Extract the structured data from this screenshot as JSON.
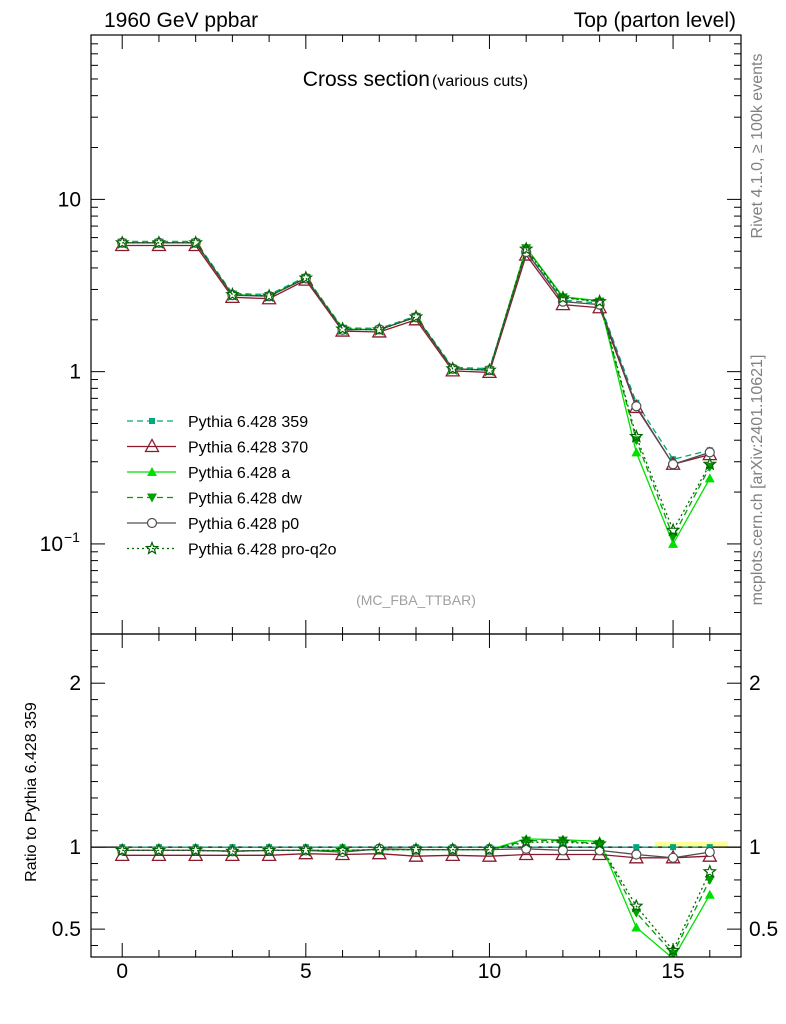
{
  "header": {
    "left": "1960 GeV ppbar",
    "right": "Top (parton level)"
  },
  "side_labels": {
    "rivet": "Rivet 4.1.0, ≥ 100k events",
    "mcplots": "mcplots.cern.ch [arXiv:2401.10621]"
  },
  "chart_data": [
    {
      "type": "line",
      "title": "Cross section",
      "subtitle": "(various cuts)",
      "watermark": "(MC_FBA_TTBAR)",
      "yscale": "log",
      "ylim": [
        0.03,
        90
      ],
      "xlim": [
        -0.85,
        16.85
      ],
      "yticks_major": [
        {
          "value": 10,
          "label": "10"
        },
        {
          "value": 1,
          "label": "1"
        },
        {
          "value": 0.1,
          "label": "10",
          "exponent": "−1"
        }
      ],
      "legend_position": "lower-left",
      "x": [
        0,
        1,
        2,
        3,
        4,
        5,
        6,
        7,
        8,
        9,
        10,
        11,
        12,
        13,
        14,
        15,
        16
      ],
      "series": [
        {
          "name": "Pythia 6.428 359",
          "color": "#00a87c",
          "dash": "6,4",
          "marker": "square",
          "values": [
            5.7,
            5.7,
            5.7,
            2.85,
            2.8,
            3.55,
            1.8,
            1.78,
            2.1,
            1.06,
            1.04,
            5.0,
            2.6,
            2.5,
            0.66,
            0.31,
            0.35
          ]
        },
        {
          "name": "Pythia 6.428 370",
          "color": "#8b1a2e",
          "dash": "",
          "marker": "triangle-open",
          "values": [
            5.4,
            5.4,
            5.4,
            2.7,
            2.65,
            3.4,
            1.72,
            1.7,
            2.0,
            1.01,
            0.99,
            4.75,
            2.45,
            2.35,
            0.62,
            0.29,
            0.33
          ]
        },
        {
          "name": "Pythia 6.428 a",
          "color": "#00e000",
          "dash": "",
          "marker": "triangle",
          "values": [
            5.6,
            5.6,
            5.6,
            2.8,
            2.75,
            3.5,
            1.77,
            1.75,
            2.08,
            1.04,
            1.02,
            5.25,
            2.72,
            2.58,
            0.34,
            0.1,
            0.24
          ]
        },
        {
          "name": "Pythia 6.428 dw",
          "color": "#00a000",
          "dash": "6,4",
          "marker": "triangle-down",
          "values": [
            5.6,
            5.6,
            5.6,
            2.8,
            2.75,
            3.5,
            1.77,
            1.75,
            2.08,
            1.04,
            1.02,
            5.2,
            2.7,
            2.55,
            0.4,
            0.11,
            0.28
          ]
        },
        {
          "name": "Pythia 6.428 p0",
          "color": "#505050",
          "dash": "",
          "marker": "circle-open",
          "values": [
            5.6,
            5.6,
            5.6,
            2.78,
            2.74,
            3.48,
            1.75,
            1.76,
            2.07,
            1.04,
            1.02,
            4.95,
            2.55,
            2.45,
            0.63,
            0.29,
            0.34
          ]
        },
        {
          "name": "Pythia 6.428 pro-q2o",
          "color": "#006400",
          "dash": "2,3",
          "marker": "star",
          "values": [
            5.6,
            5.6,
            5.6,
            2.8,
            2.75,
            3.5,
            1.77,
            1.75,
            2.08,
            1.04,
            1.02,
            5.15,
            2.68,
            2.55,
            0.42,
            0.12,
            0.29
          ]
        }
      ]
    },
    {
      "type": "line",
      "ylabel": "Ratio to Pythia 6.428 359",
      "yscale": "linear",
      "ylim": [
        0.33,
        2.3
      ],
      "xlim": [
        -0.85,
        16.85
      ],
      "yticks_major": [
        {
          "value": 0.5,
          "label": "0.5"
        },
        {
          "value": 1,
          "label": "1"
        },
        {
          "value": 2,
          "label": "2"
        }
      ],
      "xticks": [
        {
          "value": 0,
          "label": "0"
        },
        {
          "value": 5,
          "label": "5"
        },
        {
          "value": 10,
          "label": "10"
        },
        {
          "value": 15,
          "label": "15"
        }
      ],
      "band": {
        "color": "#ffff99",
        "x_range": [
          14.5,
          16.5
        ],
        "y_range": [
          0.995,
          1.015
        ]
      },
      "x": [
        0,
        1,
        2,
        3,
        4,
        5,
        6,
        7,
        8,
        9,
        10,
        11,
        12,
        13,
        14,
        15,
        16
      ],
      "series": [
        {
          "name": "Pythia 6.428 359",
          "color": "#00a87c",
          "dash": "6,4",
          "marker": "square",
          "values": [
            1,
            1,
            1,
            1,
            1,
            1,
            1,
            1,
            1,
            1,
            1,
            1,
            1,
            1,
            1,
            1,
            1
          ]
        },
        {
          "name": "Pythia 6.428 370",
          "color": "#8b1a2e",
          "dash": "",
          "marker": "triangle-open",
          "values": [
            0.95,
            0.95,
            0.95,
            0.95,
            0.95,
            0.96,
            0.955,
            0.96,
            0.945,
            0.95,
            0.945,
            0.955,
            0.955,
            0.955,
            0.935,
            0.935,
            0.945
          ]
        },
        {
          "name": "Pythia 6.428 a",
          "color": "#00e000",
          "dash": "",
          "marker": "triangle",
          "values": [
            0.98,
            0.98,
            0.98,
            0.975,
            0.98,
            0.98,
            0.98,
            0.985,
            0.985,
            0.985,
            0.985,
            1.05,
            1.045,
            1.035,
            0.51,
            0.32,
            0.71
          ]
        },
        {
          "name": "Pythia 6.428 dw",
          "color": "#00a000",
          "dash": "6,4",
          "marker": "triangle-down",
          "values": [
            0.98,
            0.98,
            0.98,
            0.975,
            0.98,
            0.98,
            0.98,
            0.985,
            0.985,
            0.985,
            0.985,
            1.04,
            1.04,
            1.02,
            0.6,
            0.35,
            0.8
          ]
        },
        {
          "name": "Pythia 6.428 p0",
          "color": "#505050",
          "dash": "",
          "marker": "circle-open",
          "values": [
            0.98,
            0.98,
            0.98,
            0.975,
            0.98,
            0.98,
            0.97,
            0.99,
            0.985,
            0.985,
            0.985,
            0.99,
            0.98,
            0.98,
            0.955,
            0.935,
            0.97
          ]
        },
        {
          "name": "Pythia 6.428 pro-q2o",
          "color": "#006400",
          "dash": "2,3",
          "marker": "star",
          "values": [
            0.98,
            0.98,
            0.98,
            0.975,
            0.98,
            0.98,
            0.98,
            0.985,
            0.985,
            0.985,
            0.985,
            1.03,
            1.03,
            1.02,
            0.64,
            0.37,
            0.85
          ]
        }
      ]
    }
  ]
}
